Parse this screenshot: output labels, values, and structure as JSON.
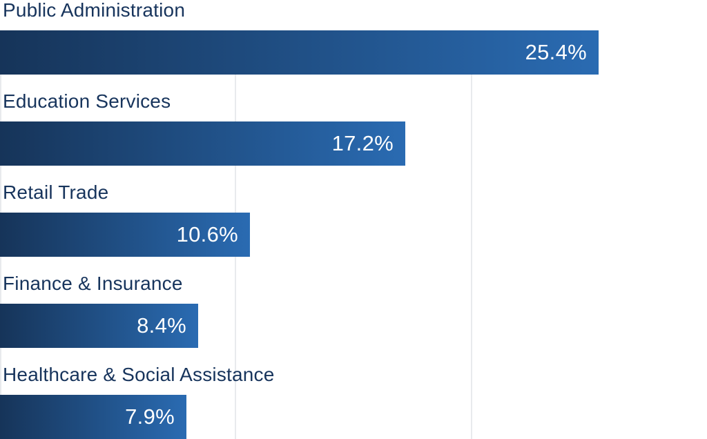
{
  "chart_data": {
    "type": "bar",
    "orientation": "horizontal",
    "title": "",
    "xlabel": "",
    "ylabel": "",
    "categories": [
      "Public Administration",
      "Education Services",
      "Retail Trade",
      "Finance & Insurance",
      "Healthcare & Social Assistance"
    ],
    "values": [
      25.4,
      17.2,
      10.6,
      8.4,
      7.9
    ],
    "value_labels": [
      "25.4%",
      "17.2%",
      "10.6%",
      "8.4%",
      "7.9%"
    ],
    "xlim": [
      0,
      30
    ],
    "gridlines_pct": [
      0,
      10,
      20
    ],
    "grid": "vertical-lines-behind-bars",
    "legend": "none",
    "colors": {
      "bar_gradient_start": "#163459",
      "bar_gradient_end": "#2A6BB2",
      "category_label": "#17345C",
      "value_label": "#FFFFFF",
      "gridline": "#E8EAED",
      "background": "#FFFFFF"
    }
  }
}
